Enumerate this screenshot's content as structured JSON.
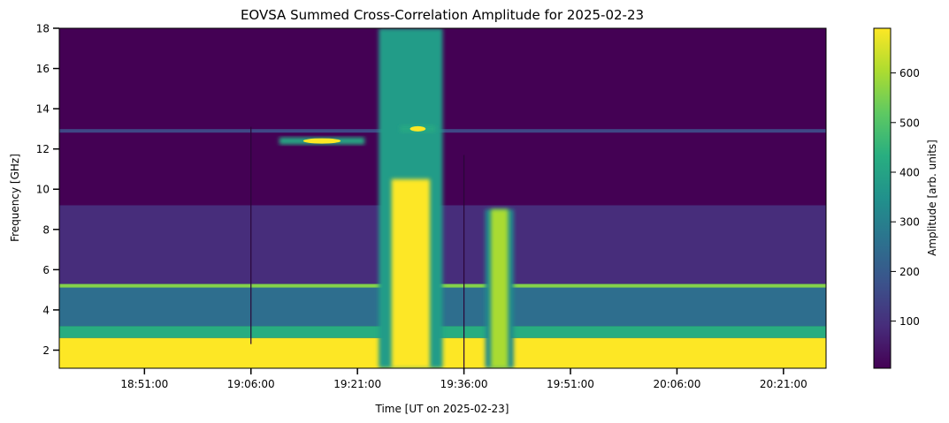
{
  "chart_data": {
    "type": "heatmap",
    "title": "EOVSA Summed Cross-Correlation Amplitude for 2025-02-23",
    "xlabel": "Time [UT on 2025-02-23]",
    "ylabel": "Frequency [GHz]",
    "colorbar_label": "Amplitude [arb. units]",
    "colormap": "viridis",
    "x_range": [
      "18:39:00",
      "20:27:00"
    ],
    "ylim": [
      1.1,
      18
    ],
    "clim": [
      5,
      690
    ],
    "x_ticks": [
      "18:51:00",
      "19:06:00",
      "19:21:00",
      "19:36:00",
      "19:51:00",
      "20:06:00",
      "20:21:00"
    ],
    "y_ticks": [
      2,
      4,
      6,
      8,
      10,
      12,
      14,
      16,
      18
    ],
    "colorbar_ticks": [
      100,
      200,
      300,
      400,
      500,
      600
    ],
    "features": [
      {
        "kind": "continuum-band",
        "freq_range": [
          1.1,
          2.6
        ],
        "time_range": [
          "18:39:00",
          "20:27:00"
        ],
        "amplitude": 690
      },
      {
        "kind": "band",
        "freq_range": [
          2.6,
          3.2
        ],
        "time_range": [
          "18:39:00",
          "20:27:00"
        ],
        "amplitude": 430
      },
      {
        "kind": "band",
        "freq_range": [
          3.2,
          5.3
        ],
        "time_range": [
          "18:39:00",
          "20:27:00"
        ],
        "amplitude": 250
      },
      {
        "kind": "line",
        "freq": 5.2,
        "time_range": [
          "18:39:00",
          "20:27:00"
        ],
        "amplitude": 560
      },
      {
        "kind": "band",
        "freq_range": [
          5.3,
          9.2
        ],
        "time_range": [
          "18:39:00",
          "20:27:00"
        ],
        "amplitude": 90
      },
      {
        "kind": "line",
        "freq": 12.9,
        "time_range": [
          "18:39:00",
          "20:27:00"
        ],
        "amplitude": 150
      },
      {
        "kind": "blob",
        "freq": 12.4,
        "time_range": [
          "19:10:00",
          "19:22:00"
        ],
        "amplitude": 690
      },
      {
        "kind": "blob",
        "freq": 13.0,
        "time_range": [
          "19:27:00",
          "19:32:00"
        ],
        "amplitude": 690
      },
      {
        "kind": "flare",
        "freq_range": [
          1.1,
          18
        ],
        "time_range": [
          "19:24:00",
          "19:33:00"
        ],
        "amplitude": 690
      },
      {
        "kind": "flare",
        "freq_range": [
          1.1,
          9
        ],
        "time_range": [
          "19:39:00",
          "19:43:00"
        ],
        "amplitude": 600
      },
      {
        "kind": "gap",
        "time": "19:06:00",
        "freq_range": [
          2.3,
          13.1
        ]
      },
      {
        "kind": "gap",
        "time": "19:36:00",
        "freq_range": [
          1.1,
          11.7
        ]
      }
    ]
  }
}
